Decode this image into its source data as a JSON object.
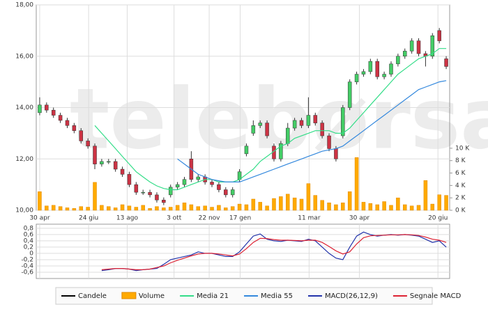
{
  "watermark": "telebørsa",
  "chart_data": [
    {
      "type": "candlestick",
      "xlim": [
        -0.5,
        59.5
      ],
      "xticks": [
        {
          "value": 0,
          "label": "30 apr"
        },
        {
          "value": 7.1,
          "label": "24 giu"
        },
        {
          "value": 12.7,
          "label": "13 ago"
        },
        {
          "value": 19.5,
          "label": "3 ott"
        },
        {
          "value": 24.6,
          "label": "22 nov"
        },
        {
          "value": 29.1,
          "label": "17 gen"
        },
        {
          "value": 39.1,
          "label": "11 mar"
        },
        {
          "value": 46.4,
          "label": "30 apr"
        },
        {
          "value": 57.8,
          "label": "20 giu"
        }
      ],
      "ylim": [
        10,
        18
      ],
      "yticks": [
        {
          "value": 10,
          "label": "10,00"
        },
        {
          "value": 12,
          "label": "12,00"
        },
        {
          "value": 14,
          "label": "14,00"
        },
        {
          "value": 16,
          "label": "16,00"
        },
        {
          "value": 18,
          "label": "18,00"
        }
      ],
      "y2lim": [
        0,
        33.1
      ],
      "y2ticks": [
        {
          "value": 0,
          "label": "0 K"
        },
        {
          "value": 2,
          "label": "2 K"
        },
        {
          "value": 4,
          "label": "4 K"
        },
        {
          "value": 6,
          "label": "6 K"
        },
        {
          "value": 8,
          "label": "8 K"
        },
        {
          "value": 10,
          "label": "10 K"
        }
      ],
      "grid": true,
      "candles": {
        "name": "Candele",
        "color": "#000000",
        "up_color": "#44cc66",
        "down_color": "#cc3344",
        "open": [
          13.8,
          14.1,
          13.9,
          13.7,
          13.5,
          13.3,
          13.1,
          12.7,
          12.5,
          11.8,
          11.9,
          11.9,
          11.6,
          11.4,
          11.0,
          10.7,
          10.7,
          10.6,
          10.4,
          10.6,
          10.9,
          11.0,
          12.0,
          11.2,
          11.3,
          11.1,
          11.0,
          10.8,
          10.6,
          11.2,
          12.2,
          13.0,
          13.3,
          13.4,
          12.5,
          12.0,
          12.6,
          13.2,
          13.5,
          13.3,
          13.7,
          13.4,
          12.9,
          12.4,
          12.9,
          14.0,
          15.0,
          15.3,
          15.4,
          15.8,
          15.2,
          15.3,
          15.7,
          16.0,
          16.2,
          16.6,
          16.1,
          16.0,
          17.0,
          15.9
        ],
        "high": [
          14.4,
          14.2,
          14.0,
          13.8,
          13.6,
          13.4,
          13.2,
          12.8,
          12.6,
          12.0,
          12.0,
          12.0,
          11.7,
          11.5,
          11.1,
          10.8,
          10.8,
          10.7,
          10.5,
          11.0,
          11.1,
          11.3,
          12.3,
          11.4,
          11.4,
          11.2,
          11.1,
          10.9,
          10.9,
          11.6,
          12.6,
          13.5,
          13.5,
          13.5,
          12.6,
          12.7,
          13.4,
          13.6,
          13.6,
          14.4,
          13.8,
          13.5,
          13.0,
          12.5,
          14.1,
          15.1,
          15.4,
          15.5,
          15.9,
          15.9,
          15.4,
          15.8,
          16.1,
          16.3,
          16.7,
          16.7,
          16.2,
          16.9,
          17.1,
          16.0
        ],
        "low": [
          13.7,
          13.8,
          13.6,
          13.4,
          13.2,
          13.0,
          12.6,
          12.4,
          11.6,
          11.7,
          11.8,
          11.5,
          11.3,
          10.9,
          10.6,
          10.6,
          10.5,
          10.3,
          10.2,
          10.5,
          10.8,
          10.9,
          11.1,
          11.1,
          11.0,
          10.9,
          10.7,
          10.5,
          10.5,
          11.1,
          12.1,
          12.9,
          13.2,
          12.8,
          11.9,
          11.9,
          12.5,
          13.1,
          13.2,
          13.2,
          13.3,
          12.8,
          12.3,
          11.9,
          12.8,
          13.9,
          14.9,
          15.2,
          15.3,
          15.1,
          15.1,
          15.2,
          15.6,
          15.9,
          16.1,
          16.0,
          15.6,
          15.9,
          16.5,
          15.5
        ],
        "close": [
          14.1,
          13.9,
          13.7,
          13.5,
          13.3,
          13.1,
          12.7,
          12.5,
          11.8,
          11.9,
          11.9,
          11.6,
          11.4,
          11.0,
          10.7,
          10.7,
          10.6,
          10.4,
          10.3,
          10.9,
          11.0,
          11.2,
          11.2,
          11.3,
          11.1,
          11.0,
          10.8,
          10.6,
          10.8,
          11.5,
          12.5,
          13.3,
          13.4,
          12.9,
          12.0,
          12.6,
          13.2,
          13.5,
          13.3,
          13.7,
          13.4,
          12.9,
          12.4,
          12.0,
          14.0,
          15.0,
          15.3,
          15.4,
          15.8,
          15.2,
          15.3,
          15.7,
          16.0,
          16.2,
          16.6,
          16.1,
          16.0,
          16.8,
          16.6,
          15.6
        ]
      },
      "series": [
        {
          "name": "Volume",
          "kind": "bar",
          "axis": "y2",
          "color": "#ffaa00",
          "values": [
            3,
            0.7,
            0.8,
            0.6,
            0.4,
            0.3,
            0.6,
            0.5,
            4.5,
            0.8,
            0.6,
            0.4,
            0.9,
            0.7,
            0.5,
            0.8,
            0.3,
            0.6,
            0.4,
            0.5,
            0.8,
            1.2,
            0.9,
            0.6,
            0.7,
            0.5,
            0.8,
            0.4,
            0.6,
            1.0,
            0.9,
            1.8,
            1.3,
            0.7,
            1.9,
            2.2,
            2.6,
            2.0,
            1.8,
            4.3,
            2.4,
            1.6,
            1.2,
            0.9,
            1.2,
            3.0,
            8.5,
            1.3,
            1.1,
            0.9,
            1.4,
            0.8,
            2.0,
            0.9,
            0.7,
            0.8,
            4.8,
            1.0,
            2.5,
            2.4
          ]
        },
        {
          "name": "Media 21",
          "kind": "line",
          "color": "#33dd88",
          "values": [
            null,
            null,
            null,
            null,
            null,
            null,
            null,
            null,
            13.3,
            13.0,
            12.7,
            12.4,
            12.1,
            11.8,
            11.5,
            11.3,
            11.1,
            10.95,
            10.85,
            10.8,
            10.8,
            10.9,
            11.0,
            11.1,
            11.2,
            11.2,
            11.1,
            11.1,
            11.1,
            11.2,
            11.4,
            11.6,
            11.9,
            12.1,
            12.3,
            12.5,
            12.6,
            12.8,
            12.9,
            13.0,
            13.1,
            13.1,
            13.1,
            13.0,
            13.0,
            13.2,
            13.5,
            13.8,
            14.1,
            14.4,
            14.7,
            15.0,
            15.3,
            15.5,
            15.7,
            15.9,
            16.0,
            16.1,
            16.3,
            16.3
          ]
        },
        {
          "name": "Media 55",
          "kind": "line",
          "color": "#3388dd",
          "values": [
            null,
            null,
            null,
            null,
            null,
            null,
            null,
            null,
            null,
            null,
            null,
            null,
            null,
            null,
            null,
            null,
            null,
            null,
            null,
            null,
            12.0,
            11.8,
            11.6,
            11.4,
            11.3,
            11.2,
            11.15,
            11.1,
            11.1,
            11.1,
            11.2,
            11.3,
            11.4,
            11.5,
            11.6,
            11.7,
            11.8,
            11.9,
            12.0,
            12.1,
            12.2,
            12.3,
            12.35,
            12.4,
            12.5,
            12.7,
            12.9,
            13.1,
            13.3,
            13.5,
            13.7,
            13.9,
            14.1,
            14.3,
            14.5,
            14.7,
            14.8,
            14.9,
            15.0,
            15.05
          ]
        }
      ]
    },
    {
      "type": "line",
      "xlim": [
        -0.5,
        59.5
      ],
      "ylim": [
        -0.8,
        0.93
      ],
      "yticks": [
        {
          "value": 0.8,
          "label": "0,8"
        },
        {
          "value": 0.6,
          "label": "0,6"
        },
        {
          "value": 0.4,
          "label": "0,4"
        },
        {
          "value": 0.2,
          "label": "0,2"
        },
        0,
        {
          "value": -0.2,
          "label": "-0,2"
        },
        {
          "value": -0.4,
          "label": "-0,4"
        },
        {
          "value": -0.6,
          "label": "-0,6"
        }
      ],
      "grid": true,
      "series": [
        {
          "name": "MACD(26,12,9)",
          "kind": "line",
          "color": "#2233aa",
          "values": [
            null,
            null,
            null,
            null,
            null,
            null,
            null,
            null,
            null,
            -0.55,
            -0.52,
            -0.48,
            -0.48,
            -0.5,
            -0.55,
            -0.52,
            -0.5,
            -0.48,
            -0.35,
            -0.2,
            -0.15,
            -0.1,
            -0.05,
            0.05,
            0.0,
            0.0,
            -0.05,
            -0.1,
            -0.1,
            0.05,
            0.3,
            0.55,
            0.62,
            0.45,
            0.4,
            0.38,
            0.42,
            0.4,
            0.38,
            0.45,
            0.4,
            0.2,
            0.0,
            -0.15,
            -0.2,
            0.2,
            0.55,
            0.68,
            0.6,
            0.55,
            0.58,
            0.6,
            0.58,
            0.6,
            0.58,
            0.55,
            0.45,
            0.35,
            0.4,
            0.2
          ]
        },
        {
          "name": "Segnale MACD",
          "kind": "line",
          "color": "#dd2233",
          "values": [
            null,
            null,
            null,
            null,
            null,
            null,
            null,
            null,
            null,
            -0.52,
            -0.5,
            -0.48,
            -0.48,
            -0.5,
            -0.52,
            -0.52,
            -0.5,
            -0.45,
            -0.4,
            -0.3,
            -0.22,
            -0.15,
            -0.08,
            -0.02,
            0.0,
            0.0,
            -0.02,
            -0.05,
            -0.08,
            -0.02,
            0.15,
            0.35,
            0.48,
            0.47,
            0.44,
            0.42,
            0.42,
            0.41,
            0.4,
            0.42,
            0.42,
            0.35,
            0.22,
            0.08,
            -0.02,
            0.05,
            0.3,
            0.5,
            0.56,
            0.57,
            0.58,
            0.59,
            0.59,
            0.6,
            0.59,
            0.57,
            0.52,
            0.45,
            0.42,
            0.35
          ]
        }
      ]
    }
  ]
}
